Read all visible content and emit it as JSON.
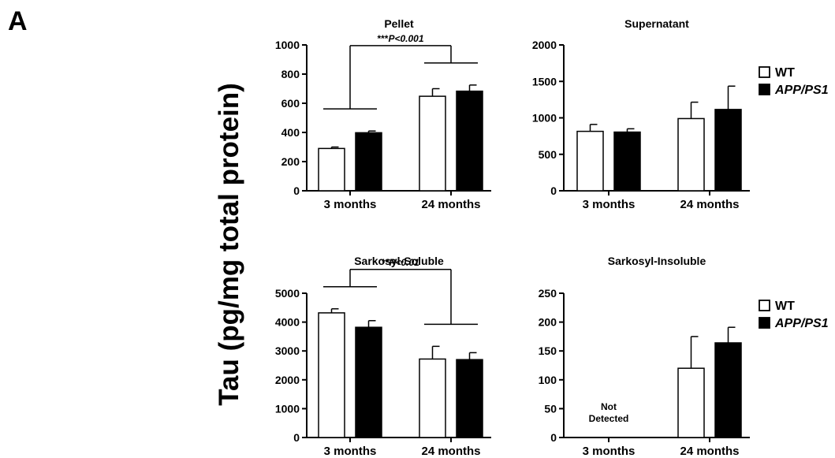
{
  "figure": {
    "panel_letter": "A",
    "y_axis_label": "Tau (pg/mg total protein)"
  },
  "legend": {
    "entries": [
      {
        "label": "WT",
        "fill": "#ffffff",
        "italic": false
      },
      {
        "label": "APP/PS1",
        "fill": "#000000",
        "italic": true
      }
    ]
  },
  "colors": {
    "wt": "#ffffff",
    "app": "#000000",
    "stroke": "#000000"
  },
  "chart_data": [
    {
      "type": "bar",
      "title": "Pellet",
      "categories": [
        "3 months",
        "24 months"
      ],
      "series": [
        {
          "name": "WT",
          "values": [
            290,
            648
          ],
          "errors": [
            10,
            52
          ]
        },
        {
          "name": "APP/PS1",
          "values": [
            398,
            683
          ],
          "errors": [
            12,
            42
          ]
        }
      ],
      "ylim": [
        0,
        1000
      ],
      "yticks": [
        "0",
        "200",
        "400",
        "600",
        "800",
        "1000"
      ],
      "significance": {
        "stars": "***",
        "label": "P<0.001"
      },
      "note": ""
    },
    {
      "type": "bar",
      "title": "Supernatant",
      "categories": [
        "3 months",
        "24 months"
      ],
      "series": [
        {
          "name": "WT",
          "values": [
            815,
            990
          ],
          "errors": [
            95,
            225
          ]
        },
        {
          "name": "APP/PS1",
          "values": [
            805,
            1115
          ],
          "errors": [
            45,
            320
          ]
        }
      ],
      "ylim": [
        0,
        2000
      ],
      "yticks": [
        "0",
        "500",
        "1000",
        "1500",
        "2000"
      ],
      "significance": null,
      "note": ""
    },
    {
      "type": "bar",
      "title": "Sarkosyl-Soluble",
      "categories": [
        "3 months",
        "24 months"
      ],
      "series": [
        {
          "name": "WT",
          "values": [
            4320,
            2720
          ],
          "errors": [
            140,
            440
          ]
        },
        {
          "name": "APP/PS1",
          "values": [
            3820,
            2700
          ],
          "errors": [
            230,
            240
          ]
        }
      ],
      "ylim": [
        0,
        5000
      ],
      "yticks": [
        "0",
        "1000",
        "2000",
        "3000",
        "4000",
        "5000"
      ],
      "significance": {
        "stars": "**",
        "label": "P<0.01"
      },
      "note": ""
    },
    {
      "type": "bar",
      "title": "Sarkosyl-Insoluble",
      "categories": [
        "3 months",
        "24 months"
      ],
      "series": [
        {
          "name": "WT",
          "values": [
            null,
            120
          ],
          "errors": [
            null,
            55
          ]
        },
        {
          "name": "APP/PS1",
          "values": [
            null,
            164
          ],
          "errors": [
            null,
            27
          ]
        }
      ],
      "ylim": [
        0,
        250
      ],
      "yticks": [
        "0",
        "50",
        "100",
        "150",
        "200",
        "250"
      ],
      "significance": null,
      "note": "Not Detected"
    }
  ]
}
